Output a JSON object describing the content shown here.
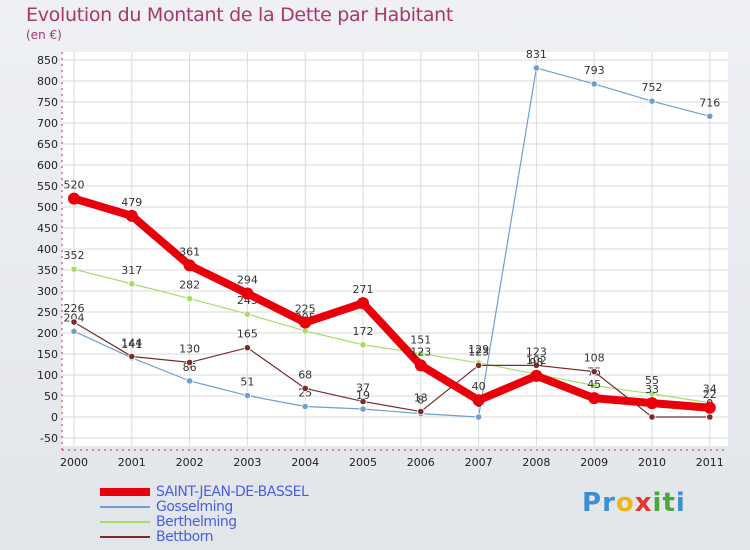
{
  "chart_data": {
    "type": "line",
    "title": "Evolution du Montant de la Dette par Habitant",
    "subtitle": "(en €)",
    "categories": [
      "2000",
      "2001",
      "2002",
      "2003",
      "2004",
      "2005",
      "2006",
      "2007",
      "2008",
      "2009",
      "2010",
      "2011"
    ],
    "y_ticks": [
      "850",
      "800",
      "750",
      "700",
      "650",
      "600",
      "550",
      "500",
      "450",
      "400",
      "350",
      "300",
      "250",
      "200",
      "150",
      "100",
      "50",
      "0",
      "-50"
    ],
    "ylim": [
      -50,
      850
    ],
    "grid": true,
    "legend_position": "bottom-left",
    "series": [
      {
        "name": "SAINT-JEAN-DE-BASSEL",
        "color": "#e8000b",
        "width": 8,
        "values": [
          520,
          479,
          361,
          294,
          225,
          271,
          123,
          40,
          98,
          45,
          33,
          22
        ]
      },
      {
        "name": "Gosselming",
        "color": "#6e9fce",
        "width": 1.2,
        "values": [
          204,
          141,
          86,
          51,
          25,
          19,
          8,
          0,
          831,
          793,
          752,
          716
        ]
      },
      {
        "name": "Berthelming",
        "color": "#a6dc6a",
        "width": 1.2,
        "values": [
          352,
          317,
          282,
          245,
          205,
          172,
          151,
          129,
          102,
          75,
          55,
          34
        ]
      },
      {
        "name": "Bettborn",
        "color": "#7b2b2b",
        "width": 1.2,
        "values": [
          226,
          144,
          130,
          165,
          68,
          37,
          13,
          123,
          123,
          108,
          0,
          0
        ]
      }
    ]
  },
  "brand": {
    "letters": [
      "P",
      "r",
      "o",
      "x",
      "i",
      "t",
      "i"
    ],
    "colors": [
      "#3e8fd1",
      "#3e8fd1",
      "#f0b418",
      "#e0362f",
      "#48a83d",
      "#48a83d",
      "#3e8fd1"
    ]
  }
}
